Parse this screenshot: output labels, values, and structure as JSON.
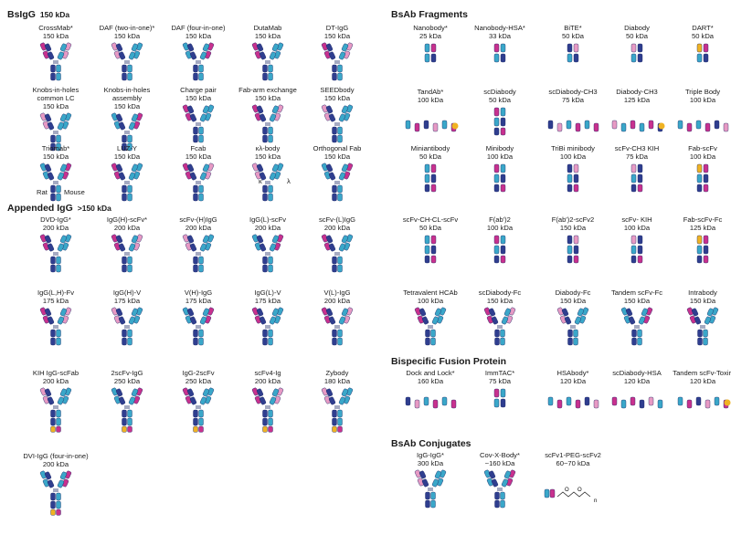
{
  "colors": {
    "heavy": "#2f3e8f",
    "heavy2": "#3aa7c9",
    "light1": "#c8318e",
    "light2": "#e79ac4",
    "hinge": "#2f3e8f",
    "accent": "#f0b323",
    "green": "#3c9a3c",
    "red": "#c0392b"
  },
  "sections": [
    {
      "title": "BsIgG",
      "sub": "150 kDa"
    },
    {
      "title": "Appended IgG",
      "sub": ">150 kDa"
    },
    {
      "title": "BsAb Fragments",
      "sub": ""
    },
    {
      "title": "Bispecific Fusion Protein",
      "sub": ""
    },
    {
      "title": "BsAb Conjugates",
      "sub": ""
    }
  ],
  "notes": {
    "rat": "Rat",
    "mouse": "Mouse",
    "kappa": "κ",
    "lambda": "λ",
    "peg_n": "n"
  },
  "formats": [
    {
      "name": "CrossMab*",
      "kda": "150 kDa",
      "glyph": "igg"
    },
    {
      "name": "DAF (two-in-one)*",
      "kda": "150 kDa",
      "glyph": "igg"
    },
    {
      "name": "DAF (four-in-one)",
      "kda": "150 kDa",
      "glyph": "igg"
    },
    {
      "name": "DutaMab",
      "kda": "150 kDa",
      "glyph": "igg"
    },
    {
      "name": "DT-IgG",
      "kda": "150 kDa",
      "glyph": "igg"
    },
    {
      "name": "Knobs-in-holes\ncommon LC",
      "kda": "150 kDa",
      "glyph": "igg"
    },
    {
      "name": "Knobs-in-holes\nassembly",
      "kda": "150 kDa",
      "glyph": "igg"
    },
    {
      "name": "Charge pair",
      "kda": "150 kDa",
      "glyph": "igg"
    },
    {
      "name": "Fab-arm exchange",
      "kda": "150 kDa",
      "glyph": "igg"
    },
    {
      "name": "SEEDbody",
      "kda": "150 kDa",
      "glyph": "igg"
    },
    {
      "name": "Triomab*",
      "kda": "150 kDa",
      "glyph": "igg"
    },
    {
      "name": "LUZ-Y",
      "kda": "150 kDa",
      "glyph": "igg"
    },
    {
      "name": "Fcab",
      "kda": "150 kDa",
      "glyph": "igg"
    },
    {
      "name": "κλ-body",
      "kda": "150 kDa",
      "glyph": "igg"
    },
    {
      "name": "Orthogonal Fab",
      "kda": "150 kDa",
      "glyph": "igg"
    },
    {
      "name": "DVD-IgG*",
      "kda": "200 kDa",
      "glyph": "igg"
    },
    {
      "name": "IgG(H)-scFv*",
      "kda": "200 kDa",
      "glyph": "igg"
    },
    {
      "name": "scFv-(H)IgG",
      "kda": "200 kDa",
      "glyph": "igg"
    },
    {
      "name": "IgG(L)-scFv",
      "kda": "200 kDa",
      "glyph": "igg"
    },
    {
      "name": "scFv-(L)IgG",
      "kda": "200 kDa",
      "glyph": "igg"
    },
    {
      "name": "IgG(L,H)-Fv",
      "kda": "175 kDa",
      "glyph": "igg"
    },
    {
      "name": "IgG(H)-V",
      "kda": "175 kDa",
      "glyph": "igg"
    },
    {
      "name": "V(H)-IgG",
      "kda": "175 kDa",
      "glyph": "igg"
    },
    {
      "name": "IgG(L)-V",
      "kda": "175 kDa",
      "glyph": "igg"
    },
    {
      "name": "V(L)-IgG",
      "kda": "200 kDa",
      "glyph": "igg"
    },
    {
      "name": "KIH IgG-scFab",
      "kda": "200 kDa",
      "glyph": "igg"
    },
    {
      "name": "2scFv-IgG",
      "kda": "250 kDa",
      "glyph": "igg"
    },
    {
      "name": "IgG-2scFv",
      "kda": "250 kDa",
      "glyph": "igg"
    },
    {
      "name": "scFv4-Ig",
      "kda": "200 kDa",
      "glyph": "igg"
    },
    {
      "name": "Zybody",
      "kda": "180 kDa",
      "glyph": "igg"
    },
    {
      "name": "DVI-IgG (four-in-one)",
      "kda": "200 kDa",
      "glyph": "igg"
    },
    {
      "name": "Nanobody*",
      "kda": "25 kDa",
      "glyph": "small"
    },
    {
      "name": "Nanobody-HSA*",
      "kda": "33 kDa",
      "glyph": "small"
    },
    {
      "name": "BiTE*",
      "kda": "50 kDa",
      "glyph": "small"
    },
    {
      "name": "Diabody",
      "kda": "50 kDa",
      "glyph": "small"
    },
    {
      "name": "DART*",
      "kda": "50 kDa",
      "glyph": "small"
    },
    {
      "name": "TandAb*",
      "kda": "100 kDa",
      "glyph": "wide"
    },
    {
      "name": "scDiabody",
      "kda": "50 kDa",
      "glyph": "small"
    },
    {
      "name": "scDiabody-CH3",
      "kda": "75 kDa",
      "glyph": "wide"
    },
    {
      "name": "Diabody-CH3",
      "kda": "125 kDa",
      "glyph": "wide"
    },
    {
      "name": "Triple Body",
      "kda": "100 kDa",
      "glyph": "wide"
    },
    {
      "name": "Miniantibody",
      "kda": "50 kDa",
      "glyph": "small"
    },
    {
      "name": "Minibody",
      "kda": "100 kDa",
      "glyph": "small"
    },
    {
      "name": "TriBi minibody",
      "kda": "100 kDa",
      "glyph": "small"
    },
    {
      "name": "scFv-CH3 KIH",
      "kda": "75 kDa",
      "glyph": "small"
    },
    {
      "name": "Fab-scFv",
      "kda": "100 kDa",
      "glyph": "small"
    },
    {
      "name": "scFv-CH-CL-scFv",
      "kda": "50 kDa",
      "glyph": "small"
    },
    {
      "name": "F(ab')2",
      "kda": "100 kDa",
      "glyph": "small"
    },
    {
      "name": "F(ab')2-scFv2",
      "kda": "150 kDa",
      "glyph": "small"
    },
    {
      "name": "scFv- KIH",
      "kda": "100 kDa",
      "glyph": "small"
    },
    {
      "name": "Fab-scFv-Fc",
      "kda": "125 kDa",
      "glyph": "small"
    },
    {
      "name": "Tetravalent HCAb",
      "kda": "100 kDa",
      "glyph": "igg"
    },
    {
      "name": "scDiabody-Fc",
      "kda": "150 kDa",
      "glyph": "igg"
    },
    {
      "name": "Diabody-Fc",
      "kda": "150 kDa",
      "glyph": "igg"
    },
    {
      "name": "Tandem scFv-Fc",
      "kda": "150 kDa",
      "glyph": "igg"
    },
    {
      "name": "Intrabody",
      "kda": "150 kDa",
      "glyph": "igg"
    },
    {
      "name": "Dock and Lock*",
      "kda": "160 kDa",
      "glyph": "wide"
    },
    {
      "name": "ImmTAC*",
      "kda": "75 kDa",
      "glyph": "small"
    },
    {
      "name": "HSAbody*",
      "kda": "120 kDa",
      "glyph": "wide"
    },
    {
      "name": "scDiabody-HSA",
      "kda": "120 kDa",
      "glyph": "wide"
    },
    {
      "name": "Tandem scFv-Toxin",
      "kda": "120 kDa",
      "glyph": "wide"
    },
    {
      "name": "IgG-IgG*",
      "kda": "300 kDa",
      "glyph": "igg"
    },
    {
      "name": "Cov-X-Body*",
      "kda": "~160 kDa",
      "glyph": "igg"
    },
    {
      "name": "scFv1-PEG-scFv2",
      "kda": "60~70 kDa",
      "glyph": "peg"
    }
  ]
}
